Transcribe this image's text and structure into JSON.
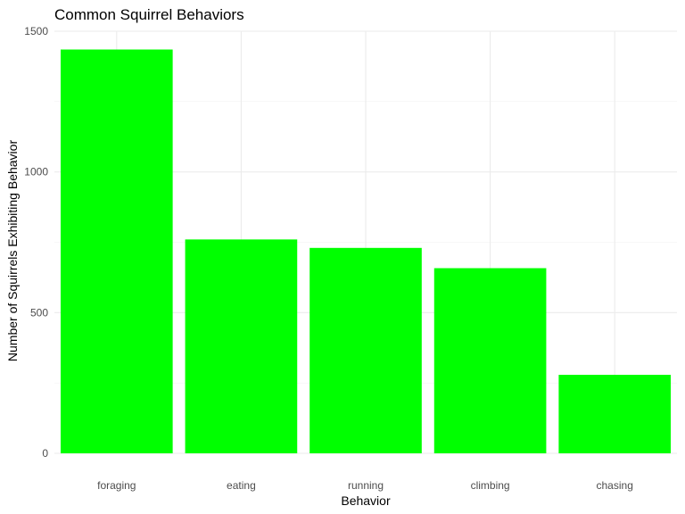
{
  "chart_data": {
    "type": "bar",
    "title": "Common Squirrel Behaviors",
    "xlabel": "Behavior",
    "ylabel": "Number of Squirrels Exhibiting Behavior",
    "categories": [
      "foraging",
      "eating",
      "running",
      "climbing",
      "chasing"
    ],
    "values": [
      1435,
      760,
      730,
      658,
      279
    ],
    "ylim": [
      0,
      1500
    ],
    "yticks": [
      0,
      500,
      1000,
      1500
    ],
    "bar_color": "#00ff00",
    "grid": true,
    "legend": "none"
  }
}
